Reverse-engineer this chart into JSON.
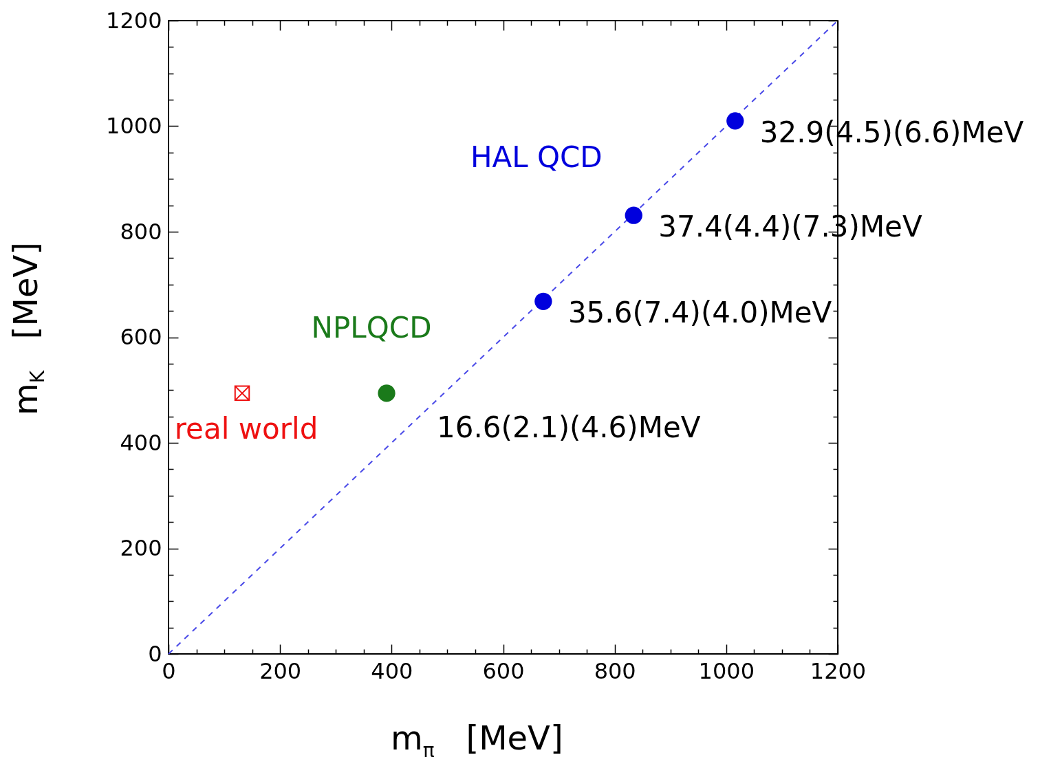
{
  "chart_data": {
    "type": "scatter",
    "xlabel": "m$_{π}$   [MeV]",
    "ylabel": "m$_{K}$   [MeV]",
    "xlim": [
      0,
      1200
    ],
    "ylim": [
      0,
      1200
    ],
    "xticks": [
      0,
      {
        "value": 50,
        "label": null
      },
      {
        "value": 100,
        "label": null
      },
      {
        "value": 150,
        "label": null
      },
      200,
      {
        "value": 250,
        "label": null
      },
      {
        "value": 300,
        "label": null
      },
      {
        "value": 350,
        "label": null
      },
      400,
      {
        "value": 450,
        "label": null
      },
      {
        "value": 500,
        "label": null
      },
      {
        "value": 550,
        "label": null
      },
      600,
      {
        "value": 650,
        "label": null
      },
      {
        "value": 700,
        "label": null
      },
      {
        "value": 750,
        "label": null
      },
      800,
      {
        "value": 850,
        "label": null
      },
      {
        "value": 900,
        "label": null
      },
      {
        "value": 950,
        "label": null
      },
      1000,
      {
        "value": 1050,
        "label": null
      },
      {
        "value": 1100,
        "label": null
      },
      {
        "value": 1150,
        "label": null
      },
      1200
    ],
    "yticks": [
      0,
      {
        "value": 50,
        "label": null
      },
      {
        "value": 100,
        "label": null
      },
      {
        "value": 150,
        "label": null
      },
      200,
      {
        "value": 250,
        "label": null
      },
      {
        "value": 300,
        "label": null
      },
      {
        "value": 350,
        "label": null
      },
      400,
      {
        "value": 450,
        "label": null
      },
      {
        "value": 500,
        "label": null
      },
      {
        "value": 550,
        "label": null
      },
      600,
      {
        "value": 650,
        "label": null
      },
      {
        "value": 700,
        "label": null
      },
      {
        "value": 750,
        "label": null
      },
      800,
      {
        "value": 850,
        "label": null
      },
      {
        "value": 900,
        "label": null
      },
      {
        "value": 950,
        "label": null
      },
      1000,
      {
        "value": 1050,
        "label": null
      },
      {
        "value": 1100,
        "label": null
      },
      {
        "value": 1150,
        "label": null
      },
      1200
    ],
    "marker": "circle",
    "series": [
      {
        "type": "line",
        "color": "#4a4ae8",
        "line_style": "dashed",
        "marker": "none",
        "x": [
          0,
          1200
        ],
        "values": [
          0,
          1200
        ]
      },
      {
        "name": "HAL QCD",
        "color": "#0000dd",
        "x": [
          672,
          834,
          1016
        ],
        "values": [
          668,
          831,
          1010
        ],
        "value_labels": [
          "35.6(7.4)(4.0)MeV",
          "37.4(4.4)(7.3)MeV",
          "32.9(4.5)(6.6)MeV"
        ]
      },
      {
        "name": "NPLQCD",
        "color": "#1a7a1a",
        "x": [
          391
        ],
        "values": [
          494
        ],
        "value_labels": [
          "16.6(2.1)(4.6)MeV"
        ]
      },
      {
        "name": "real world",
        "color": "#ee1111",
        "marker": "cross",
        "x": [
          132
        ],
        "values": [
          494
        ]
      }
    ]
  }
}
